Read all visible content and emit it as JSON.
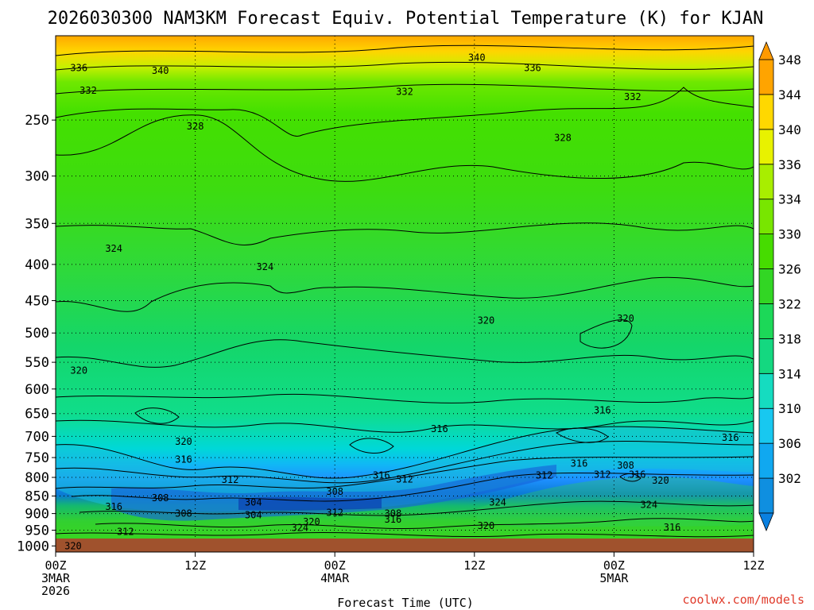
{
  "chart_data": {
    "type": "heatmap",
    "title": "2026030300 NAM3KM Forecast Equiv. Potential Temperature (K) for KJAN",
    "xlabel": "Forecast Time (UTC)",
    "ylabel": "",
    "y_ticks": [
      250,
      300,
      350,
      400,
      450,
      500,
      550,
      600,
      650,
      700,
      750,
      800,
      850,
      900,
      950,
      1000
    ],
    "y_tick_labels": [
      "250",
      "300",
      "350",
      "400",
      "450",
      "500",
      "550",
      "600",
      "650",
      "700",
      "750",
      "800",
      "850",
      "900",
      "950",
      "1000"
    ],
    "ylim": [
      1020,
      190
    ],
    "x_ticks": [
      0,
      12,
      24,
      36,
      48,
      60
    ],
    "x_tick_labels": [
      [
        "00Z",
        "3MAR",
        "2026"
      ],
      [
        "12Z"
      ],
      [
        "00Z",
        "4MAR"
      ],
      [
        "12Z"
      ],
      [
        "00Z",
        "5MAR"
      ],
      [
        "12Z"
      ]
    ],
    "xlim": [
      0,
      60
    ],
    "colorbar": {
      "levels": [
        302,
        306,
        310,
        314,
        318,
        322,
        326,
        330,
        334,
        336,
        340,
        344,
        348
      ],
      "labels": [
        "302",
        "306",
        "310",
        "314",
        "318",
        "322",
        "326",
        "330",
        "334",
        "336",
        "340",
        "344",
        "348"
      ]
    },
    "contour_labels": [
      {
        "text": "340",
        "t": 36.2,
        "p": 204
      },
      {
        "text": "336",
        "t": 2.0,
        "p": 211
      },
      {
        "text": "340",
        "t": 9.0,
        "p": 213
      },
      {
        "text": "336",
        "t": 41.0,
        "p": 211
      },
      {
        "text": "332",
        "t": 2.8,
        "p": 227
      },
      {
        "text": "332",
        "t": 30.0,
        "p": 228
      },
      {
        "text": "332",
        "t": 49.6,
        "p": 232
      },
      {
        "text": "328",
        "t": 12.0,
        "p": 255
      },
      {
        "text": "328",
        "t": 43.6,
        "p": 265
      },
      {
        "text": "324",
        "t": 5.0,
        "p": 380
      },
      {
        "text": "324",
        "t": 18.0,
        "p": 403
      },
      {
        "text": "320",
        "t": 37.0,
        "p": 480
      },
      {
        "text": "320",
        "t": 49.0,
        "p": 477
      },
      {
        "text": "320",
        "t": 2.0,
        "p": 565
      },
      {
        "text": "316",
        "t": 47.0,
        "p": 643
      },
      {
        "text": "316",
        "t": 33.0,
        "p": 683
      },
      {
        "text": "316",
        "t": 58.0,
        "p": 703
      },
      {
        "text": "320",
        "t": 11.0,
        "p": 712
      },
      {
        "text": "316",
        "t": 11.0,
        "p": 755
      },
      {
        "text": "312",
        "t": 15.0,
        "p": 806
      },
      {
        "text": "316",
        "t": 28.0,
        "p": 795
      },
      {
        "text": "312",
        "t": 30.0,
        "p": 805
      },
      {
        "text": "308",
        "t": 9.0,
        "p": 856
      },
      {
        "text": "304",
        "t": 17.0,
        "p": 868
      },
      {
        "text": "308",
        "t": 24.0,
        "p": 838
      },
      {
        "text": "316",
        "t": 45.0,
        "p": 765
      },
      {
        "text": "312",
        "t": 42.0,
        "p": 795
      },
      {
        "text": "312",
        "t": 47.0,
        "p": 793
      },
      {
        "text": "308",
        "t": 49.0,
        "p": 770
      },
      {
        "text": "316",
        "t": 50.0,
        "p": 793
      },
      {
        "text": "320",
        "t": 52.0,
        "p": 808
      },
      {
        "text": "324",
        "t": 38.0,
        "p": 868
      },
      {
        "text": "324",
        "t": 51.0,
        "p": 874
      },
      {
        "text": "316",
        "t": 5.0,
        "p": 880
      },
      {
        "text": "308",
        "t": 11.0,
        "p": 900
      },
      {
        "text": "304",
        "t": 17.0,
        "p": 904
      },
      {
        "text": "312",
        "t": 24.0,
        "p": 898
      },
      {
        "text": "308",
        "t": 29.0,
        "p": 900
      },
      {
        "text": "316",
        "t": 29.0,
        "p": 918
      },
      {
        "text": "320",
        "t": 22.0,
        "p": 924
      },
      {
        "text": "324",
        "t": 21.0,
        "p": 943
      },
      {
        "text": "312",
        "t": 6.0,
        "p": 955
      },
      {
        "text": "320",
        "t": 37.0,
        "p": 937
      },
      {
        "text": "316",
        "t": 53.0,
        "p": 941
      },
      {
        "text": "320",
        "t": 1.5,
        "p": 1000
      }
    ]
  },
  "credit": "coolwx.com/models",
  "colors": {
    "ground": "#a0522d"
  }
}
